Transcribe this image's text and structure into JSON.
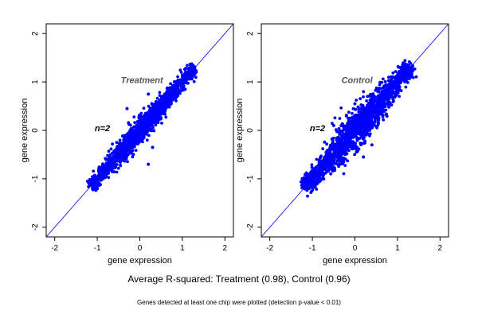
{
  "chart_data": [
    {
      "type": "scatter",
      "title": "Treatment",
      "xlabel": "gene expression",
      "ylabel": "gene expression",
      "xlim": [
        -2.2,
        2.2
      ],
      "ylim": [
        -2.2,
        2.2
      ],
      "xticks": [
        -2,
        -1,
        0,
        1,
        2
      ],
      "yticks": [
        -2,
        -1,
        0,
        1,
        2
      ],
      "annotation": "n=2",
      "identity_line": true,
      "point_color": "#0000ff",
      "line_color": "#0000ff",
      "r_squared": 0.98,
      "points": [
        [
          -1.0,
          -1.0
        ],
        [
          -0.8,
          -0.82
        ],
        [
          -0.5,
          -0.5
        ],
        [
          -0.2,
          -0.18
        ],
        [
          0.0,
          0.0
        ],
        [
          0.2,
          0.2
        ],
        [
          0.5,
          0.5
        ],
        [
          0.8,
          0.8
        ],
        [
          1.1,
          1.1
        ],
        [
          1.2,
          1.2
        ],
        [
          -0.3,
          0.45
        ],
        [
          0.2,
          0.75
        ],
        [
          0.3,
          -0.35
        ],
        [
          0.2,
          -0.7
        ],
        [
          -0.4,
          -0.4
        ],
        [
          0.6,
          0.55
        ]
      ]
    },
    {
      "type": "scatter",
      "title": "Control",
      "xlabel": "gene expression",
      "ylabel": "gene expression",
      "xlim": [
        -2.2,
        2.2
      ],
      "ylim": [
        -2.2,
        2.2
      ],
      "xticks": [
        -2,
        -1,
        0,
        1,
        2
      ],
      "yticks": [
        -2,
        -1,
        0,
        1,
        2
      ],
      "annotation": "n=2",
      "identity_line": true,
      "point_color": "#0000ff",
      "line_color": "#0000ff",
      "r_squared": 0.96,
      "points": [
        [
          -1.05,
          -1.05
        ],
        [
          -0.8,
          -0.8
        ],
        [
          -0.5,
          -0.55
        ],
        [
          -0.2,
          -0.2
        ],
        [
          0.0,
          0.0
        ],
        [
          0.2,
          0.2
        ],
        [
          0.5,
          0.5
        ],
        [
          0.8,
          0.8
        ],
        [
          1.1,
          1.1
        ],
        [
          1.2,
          1.2
        ],
        [
          -0.5,
          0.1
        ],
        [
          0.0,
          0.55
        ],
        [
          0.4,
          -0.3
        ],
        [
          0.2,
          -0.55
        ],
        [
          -0.2,
          0.3
        ],
        [
          0.6,
          0.6
        ]
      ]
    }
  ],
  "caption": "Average R-squared: Treatment (0.98), Control (0.96)",
  "footnote": "Genes detected at least one chip were plotted (detection p-value < 0.01)"
}
